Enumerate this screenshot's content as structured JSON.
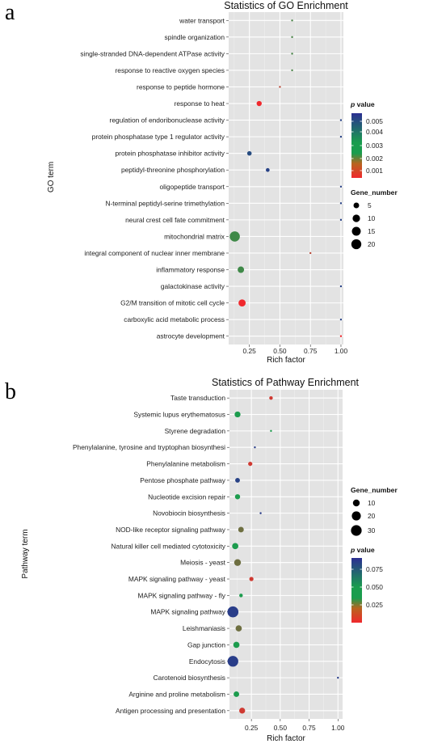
{
  "chart_data": [
    {
      "panel_label": "a",
      "type": "scatter",
      "title": "Statistics of GO Enrichment",
      "xlabel": "Rich factor",
      "ylabel": "GO term",
      "xlim": [
        0.08,
        1.02
      ],
      "xticks": [
        "0.25",
        "0.50",
        "0.75",
        "1.00"
      ],
      "xtick_values": [
        0.25,
        0.5,
        0.75,
        1.0
      ],
      "grid": true,
      "legend_position": "right",
      "color_legend": {
        "title": "p value",
        "ticks": [
          "0.005",
          "0.004",
          "0.003",
          "0.002",
          "0.001"
        ],
        "colors_top_to_bottom": [
          "#2b2f92",
          "#1a9d4e",
          "#f0282d"
        ]
      },
      "size_legend": {
        "title": "Gene_number",
        "labels": [
          "5",
          "10",
          "15",
          "20"
        ],
        "values": [
          5,
          10,
          15,
          20
        ]
      },
      "points": [
        {
          "term": "water transport",
          "x": 0.6,
          "gene_number": 1,
          "p_value": 0.0024
        },
        {
          "term": "spindle organization",
          "x": 0.6,
          "gene_number": 1,
          "p_value": 0.0024
        },
        {
          "term": "single-stranded DNA-dependent ATPase activity",
          "x": 0.6,
          "gene_number": 1,
          "p_value": 0.0024
        },
        {
          "term": "response to reactive oxygen species",
          "x": 0.6,
          "gene_number": 1,
          "p_value": 0.0024
        },
        {
          "term": "response to peptide hormone",
          "x": 0.5,
          "gene_number": 1,
          "p_value": 0.0012
        },
        {
          "term": "response to heat",
          "x": 0.33,
          "gene_number": 4,
          "p_value": 0.0006
        },
        {
          "term": "regulation of endoribonuclease activity",
          "x": 1.0,
          "gene_number": 1,
          "p_value": 0.0048
        },
        {
          "term": "protein phosphatase type 1 regulator activity",
          "x": 1.0,
          "gene_number": 1,
          "p_value": 0.0048
        },
        {
          "term": "protein phosphatase inhibitor activity",
          "x": 0.25,
          "gene_number": 3,
          "p_value": 0.0046
        },
        {
          "term": "peptidyl-threonine phosphorylation",
          "x": 0.4,
          "gene_number": 2,
          "p_value": 0.0048
        },
        {
          "term": "oligopeptide transport",
          "x": 1.0,
          "gene_number": 1,
          "p_value": 0.0048
        },
        {
          "term": "N-terminal peptidyl-serine trimethylation",
          "x": 1.0,
          "gene_number": 1,
          "p_value": 0.0048
        },
        {
          "term": "neural crest cell fate commitment",
          "x": 1.0,
          "gene_number": 1,
          "p_value": 0.0048
        },
        {
          "term": "mitochondrial matrix",
          "x": 0.13,
          "gene_number": 21,
          "p_value": 0.0025
        },
        {
          "term": "integral component of nuclear inner membrane",
          "x": 0.75,
          "gene_number": 1,
          "p_value": 0.0012
        },
        {
          "term": "inflammatory response",
          "x": 0.18,
          "gene_number": 7,
          "p_value": 0.0025
        },
        {
          "term": "galactokinase activity",
          "x": 1.0,
          "gene_number": 1,
          "p_value": 0.0048
        },
        {
          "term": "G2/M transition of mitotic cell cycle",
          "x": 0.19,
          "gene_number": 9,
          "p_value": 0.0006
        },
        {
          "term": "carboxylic acid metabolic process",
          "x": 1.0,
          "gene_number": 1,
          "p_value": 0.0048
        },
        {
          "term": "astrocyte development",
          "x": 1.0,
          "gene_number": 1,
          "p_value": 0.0006
        }
      ]
    },
    {
      "panel_label": "b",
      "type": "scatter",
      "title": "Statistics of Pathway Enrichment",
      "xlabel": "Rich factor",
      "ylabel": "Pathway term",
      "xlim": [
        0.06,
        1.04
      ],
      "xticks": [
        "0.25",
        "0.50",
        "0.75",
        "1.00"
      ],
      "xtick_values": [
        0.25,
        0.5,
        0.75,
        1.0
      ],
      "grid": true,
      "legend_position": "right",
      "size_legend": {
        "title": "Gene_number",
        "labels": [
          "10",
          "20",
          "30"
        ],
        "values": [
          10,
          20,
          30
        ]
      },
      "color_legend": {
        "title": "p value",
        "ticks": [
          "0.075",
          "0.050",
          "0.025"
        ],
        "colors_top_to_bottom": [
          "#2b2f92",
          "#1a9d4e",
          "#f0282d"
        ]
      },
      "points": [
        {
          "term": "Taste transduction",
          "x": 0.42,
          "gene_number": 2,
          "p_value": 0.012
        },
        {
          "term": "Systemic lupus erythematosus",
          "x": 0.13,
          "gene_number": 7,
          "p_value": 0.045
        },
        {
          "term": "Styrene degradation",
          "x": 0.42,
          "gene_number": 1,
          "p_value": 0.045
        },
        {
          "term": "Phenylalanine, tyrosine and tryptophan biosynthesi",
          "x": 0.28,
          "gene_number": 1,
          "p_value": 0.08
        },
        {
          "term": "Phenylalanine metabolism",
          "x": 0.24,
          "gene_number": 3,
          "p_value": 0.012
        },
        {
          "term": "Pentose phosphate pathway",
          "x": 0.13,
          "gene_number": 4,
          "p_value": 0.078
        },
        {
          "term": "Nucleotide excision repair",
          "x": 0.13,
          "gene_number": 5,
          "p_value": 0.045
        },
        {
          "term": "Novobiocin biosynthesis",
          "x": 0.33,
          "gene_number": 1,
          "p_value": 0.08
        },
        {
          "term": "NOD-like receptor signaling pathway",
          "x": 0.16,
          "gene_number": 6,
          "p_value": 0.03
        },
        {
          "term": "Natural killer cell mediated cytotoxicity",
          "x": 0.11,
          "gene_number": 8,
          "p_value": 0.045
        },
        {
          "term": "Meiosis - yeast",
          "x": 0.13,
          "gene_number": 10,
          "p_value": 0.03
        },
        {
          "term": "MAPK signaling pathway - yeast",
          "x": 0.25,
          "gene_number": 3,
          "p_value": 0.012
        },
        {
          "term": "MAPK signaling pathway - fly",
          "x": 0.16,
          "gene_number": 2,
          "p_value": 0.045
        },
        {
          "term": "MAPK signaling pathway",
          "x": 0.09,
          "gene_number": 32,
          "p_value": 0.08
        },
        {
          "term": "Leishmaniasis",
          "x": 0.14,
          "gene_number": 8,
          "p_value": 0.03
        },
        {
          "term": "Gap junction",
          "x": 0.12,
          "gene_number": 8,
          "p_value": 0.045
        },
        {
          "term": "Endocytosis",
          "x": 0.09,
          "gene_number": 30,
          "p_value": 0.08
        },
        {
          "term": "Carotenoid biosynthesis",
          "x": 1.0,
          "gene_number": 1,
          "p_value": 0.08
        },
        {
          "term": "Arginine and proline metabolism",
          "x": 0.12,
          "gene_number": 6,
          "p_value": 0.045
        },
        {
          "term": "Antigen processing and presentation",
          "x": 0.17,
          "gene_number": 7,
          "p_value": 0.012
        }
      ]
    }
  ]
}
